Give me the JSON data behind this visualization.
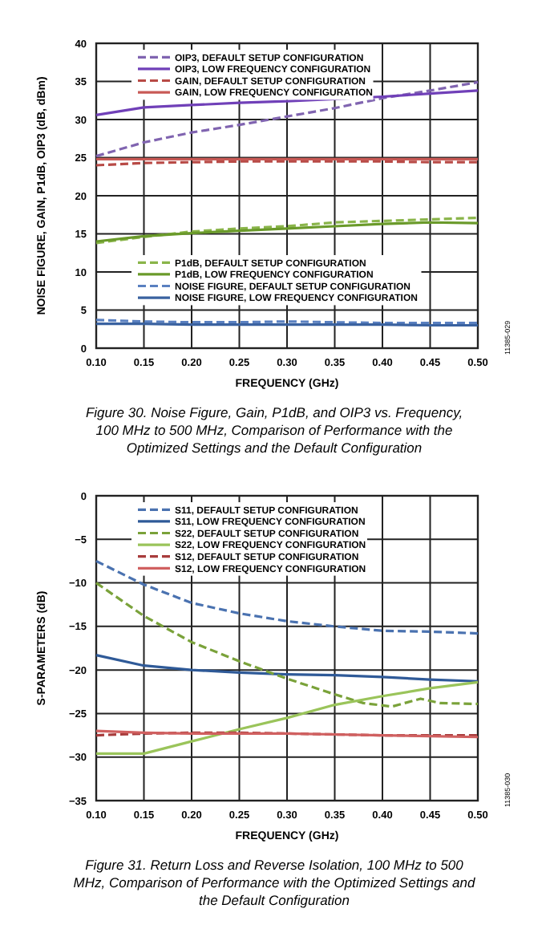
{
  "chart_data": [
    {
      "type": "line",
      "title": "Figure 30. Noise Figure, Gain, P1dB, and OIP3 vs. Frequency, 100 MHz to 500 MHz, Comparison of Performance with the Optimized Settings and the Default Configuration",
      "xlabel": "FREQUENCY (GHz)",
      "ylabel": "NOISE FIGURE, GAIN, P1dB, OIP3 (dB, dBm)",
      "x": [
        0.1,
        0.15,
        0.2,
        0.25,
        0.3,
        0.35,
        0.4,
        0.45,
        0.5
      ],
      "xlim": [
        0.1,
        0.5
      ],
      "xticks": [
        {
          "value": 0.1,
          "label": "0.10"
        },
        {
          "value": 0.15,
          "label": "0.15"
        },
        {
          "value": 0.2,
          "label": "0.20"
        },
        {
          "value": 0.25,
          "label": "0.25"
        },
        {
          "value": 0.3,
          "label": "0.30"
        },
        {
          "value": 0.35,
          "label": "0.35"
        },
        {
          "value": 0.4,
          "label": "0.40"
        },
        {
          "value": 0.45,
          "label": "0.45"
        },
        {
          "value": 0.5,
          "label": "0.50"
        }
      ],
      "ylim": [
        0,
        40
      ],
      "yticks": [
        0,
        5,
        10,
        15,
        20,
        25,
        30,
        35,
        40
      ],
      "grid": true,
      "legend": "top",
      "marker": "none",
      "annotations": [
        "11385-029"
      ],
      "series": [
        {
          "name": "OIP3, DEFAULT SETUP CONFIGURATION",
          "color": "#8064b0",
          "line_style": "dashed",
          "values": [
            25.2,
            27.0,
            28.3,
            29.3,
            30.4,
            31.5,
            32.8,
            33.8,
            34.9
          ]
        },
        {
          "name": "OIP3, LOW FREQUENCY CONFIGURATION",
          "color": "#7040b8",
          "line_style": "solid",
          "values": [
            30.6,
            31.6,
            31.9,
            32.2,
            32.4,
            32.7,
            33.0,
            33.4,
            33.8
          ]
        },
        {
          "name": "GAIN, DEFAULT SETUP CONFIGURATION",
          "color": "#b84a46",
          "line_style": "dashed",
          "values": [
            24.0,
            24.3,
            24.4,
            24.5,
            24.5,
            24.5,
            24.5,
            24.4,
            24.4
          ]
        },
        {
          "name": "GAIN, LOW FREQUENCY CONFIGURATION",
          "color": "#c85a56",
          "line_style": "solid",
          "values": [
            24.8,
            24.8,
            24.8,
            24.8,
            24.8,
            24.8,
            24.8,
            24.8,
            24.8
          ]
        },
        {
          "name": "P1dB, DEFAULT SETUP CONFIGURATION",
          "color": "#8ab54a",
          "line_style": "dashed",
          "values": [
            13.8,
            14.6,
            15.3,
            15.7,
            16.0,
            16.5,
            16.7,
            16.9,
            17.1
          ]
        },
        {
          "name": "P1dB, LOW FREQUENCY CONFIGURATION",
          "color": "#6a9a2a",
          "line_style": "solid",
          "values": [
            14.0,
            14.7,
            15.1,
            15.4,
            15.7,
            16.0,
            16.3,
            16.5,
            16.4
          ]
        },
        {
          "name": "NOISE FIGURE, DEFAULT SETUP CONFIGURATION",
          "color": "#5a80c0",
          "line_style": "dashed",
          "values": [
            3.7,
            3.5,
            3.4,
            3.4,
            3.5,
            3.4,
            3.3,
            3.3,
            3.3
          ]
        },
        {
          "name": "NOISE FIGURE, LOW FREQUENCY CONFIGURATION",
          "color": "#3a62a0",
          "line_style": "solid",
          "values": [
            3.2,
            3.2,
            3.1,
            3.1,
            3.1,
            3.1,
            3.1,
            3.0,
            3.0
          ]
        }
      ]
    },
    {
      "type": "line",
      "title": "Figure 31. Return Loss and Reverse Isolation, 100 MHz to 500 MHz, Comparison of Performance with the Optimized Settings and the Default Configuration",
      "xlabel": "FREQUENCY (GHz)",
      "ylabel": "S-PARAMETERS (dB)",
      "x": [
        0.1,
        0.15,
        0.2,
        0.25,
        0.3,
        0.35,
        0.4,
        0.45,
        0.5
      ],
      "xlim": [
        0.1,
        0.5
      ],
      "xticks": [
        {
          "value": 0.1,
          "label": "0.10"
        },
        {
          "value": 0.15,
          "label": "0.15"
        },
        {
          "value": 0.2,
          "label": "0.20"
        },
        {
          "value": 0.25,
          "label": "0.25"
        },
        {
          "value": 0.3,
          "label": "0.30"
        },
        {
          "value": 0.35,
          "label": "0.35"
        },
        {
          "value": 0.4,
          "label": "0.40"
        },
        {
          "value": 0.45,
          "label": "0.45"
        },
        {
          "value": 0.5,
          "label": "0.50"
        }
      ],
      "ylim": [
        -35,
        0
      ],
      "yticks": [
        {
          "value": -35,
          "label": "−35"
        },
        {
          "value": -30,
          "label": "−30"
        },
        {
          "value": -25,
          "label": "−25"
        },
        {
          "value": -20,
          "label": "−20"
        },
        {
          "value": -15,
          "label": "−15"
        },
        {
          "value": -10,
          "label": "−10"
        },
        {
          "value": -5,
          "label": "−5"
        },
        0
      ],
      "grid": true,
      "legend": "top",
      "marker": "none",
      "annotations": [
        "11385-030"
      ],
      "series": [
        {
          "name": "S11, DEFAULT SETUP CONFIGURATION",
          "color": "#4a72b0",
          "line_style": "dashed",
          "values": [
            -7.5,
            -10.2,
            -12.3,
            -13.5,
            -14.4,
            -15.0,
            -15.5,
            -15.6,
            -15.8
          ]
        },
        {
          "name": "S11, LOW FREQUENCY CONFIGURATION",
          "color": "#2f5a98",
          "line_style": "solid",
          "values": [
            -18.3,
            -19.5,
            -20.0,
            -20.3,
            -20.5,
            -20.6,
            -20.8,
            -21.1,
            -21.3
          ]
        },
        {
          "name": "S22, DEFAULT SETUP CONFIGURATION",
          "color": "#7aa23a",
          "line_style": "dashed",
          "x": [
            0.1,
            0.15,
            0.2,
            0.25,
            0.3,
            0.35,
            0.38,
            0.41,
            0.44,
            0.46,
            0.5
          ],
          "values": [
            -10.0,
            -13.8,
            -16.8,
            -19.0,
            -21.0,
            -22.8,
            -23.8,
            -24.2,
            -23.3,
            -23.8,
            -23.9
          ]
        },
        {
          "name": "S22, LOW FREQUENCY CONFIGURATION",
          "color": "#9ac45a",
          "line_style": "solid",
          "values": [
            -29.6,
            -29.6,
            -28.2,
            -26.8,
            -25.5,
            -24.0,
            -23.0,
            -22.1,
            -21.4
          ]
        },
        {
          "name": "S12, DEFAULT SETUP CONFIGURATION",
          "color": "#a83c3c",
          "line_style": "dashed",
          "values": [
            -27.5,
            -27.3,
            -27.2,
            -27.2,
            -27.3,
            -27.4,
            -27.5,
            -27.5,
            -27.5
          ]
        },
        {
          "name": "S12, LOW FREQUENCY CONFIGURATION",
          "color": "#d06060",
          "line_style": "solid",
          "values": [
            -27.0,
            -27.2,
            -27.3,
            -27.3,
            -27.3,
            -27.4,
            -27.5,
            -27.6,
            -27.7
          ]
        }
      ]
    }
  ]
}
